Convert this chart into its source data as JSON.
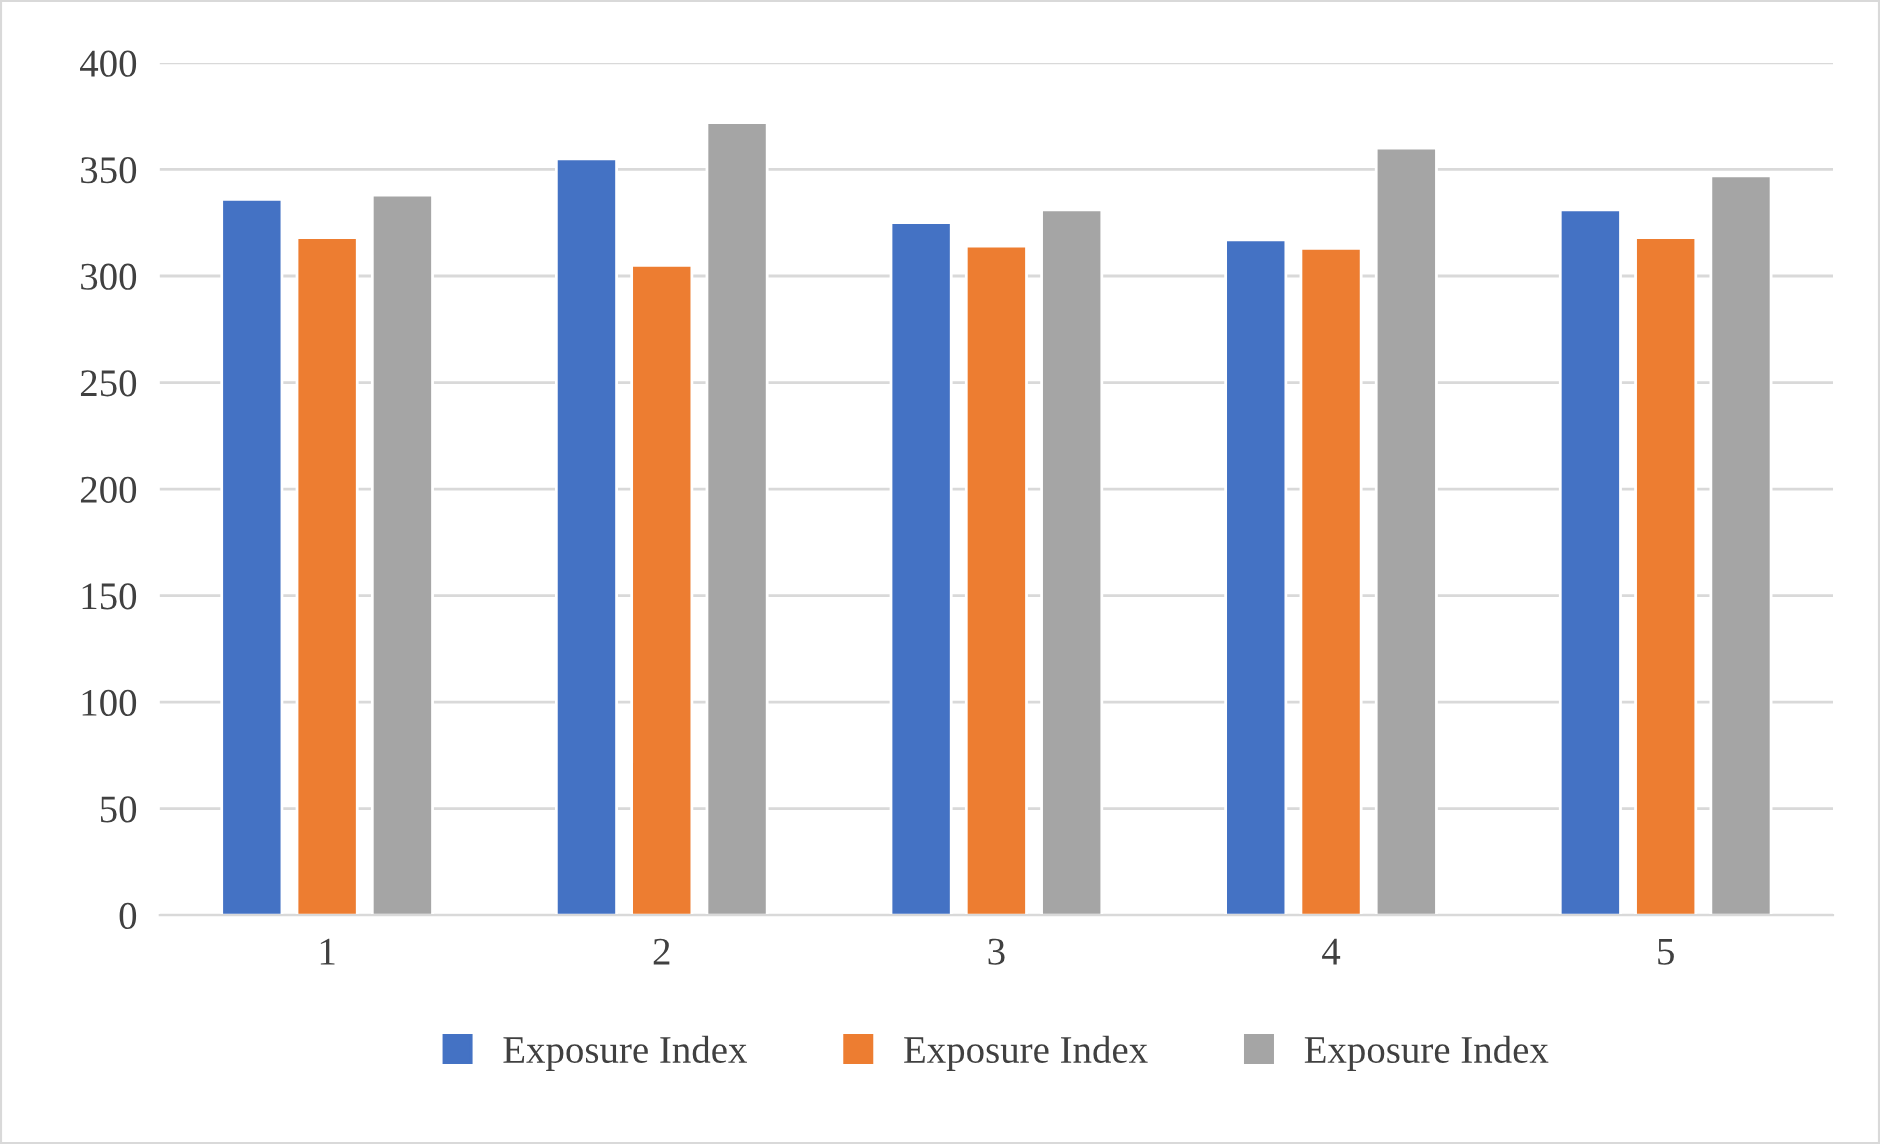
{
  "chart_data": {
    "type": "bar",
    "categories": [
      "1",
      "2",
      "3",
      "4",
      "5"
    ],
    "series": [
      {
        "name": "Exposure Index",
        "color": "#4472c4",
        "values": [
          336,
          355,
          325,
          317,
          331
        ]
      },
      {
        "name": "Exposure Index",
        "color": "#ed7d31",
        "values": [
          318,
          305,
          314,
          313,
          318
        ]
      },
      {
        "name": "Exposure Index",
        "color": "#a5a5a5",
        "values": [
          338,
          372,
          331,
          360,
          347
        ]
      }
    ],
    "ylim": [
      0,
      400
    ],
    "yticks": [
      0,
      50,
      100,
      150,
      200,
      250,
      300,
      350,
      400
    ],
    "grid": "y",
    "legend": "bottom"
  }
}
